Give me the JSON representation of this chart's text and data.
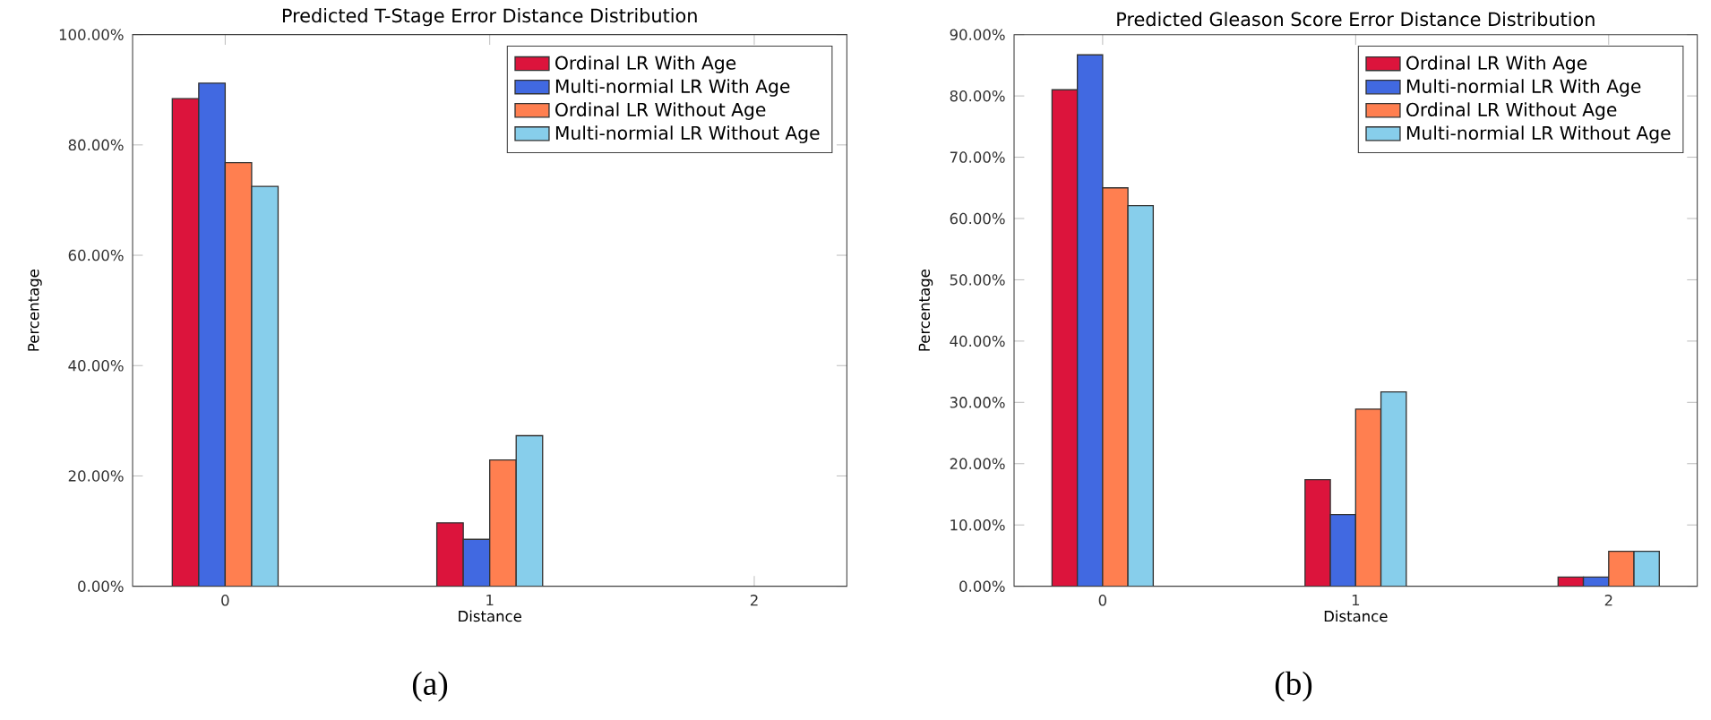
{
  "chart_data": [
    {
      "type": "bar",
      "title": "Predicted T-Stage Error Distance Distribution",
      "xlabel": "Distance",
      "ylabel": "Percentage",
      "categories": [
        "0",
        "1",
        "2"
      ],
      "series": [
        {
          "name": "Ordinal LR With Age",
          "color": "#dc143c",
          "values": [
            88.4,
            11.5,
            null
          ]
        },
        {
          "name": "Multi-normial LR With Age",
          "color": "#4169e1",
          "values": [
            91.2,
            8.5,
            null
          ]
        },
        {
          "name": "Ordinal LR Without Age",
          "color": "#ff7f50",
          "values": [
            76.8,
            22.9,
            null
          ]
        },
        {
          "name": "Multi-normial LR Without Age",
          "color": "#87ceeb",
          "values": [
            72.5,
            27.3,
            null
          ]
        }
      ],
      "ylim": [
        0,
        100
      ],
      "yticks": [
        {
          "value": 0,
          "label": "0.00%"
        },
        {
          "value": 20,
          "label": "20.00%"
        },
        {
          "value": 40,
          "label": "40.00%"
        },
        {
          "value": 60,
          "label": "60.00%"
        },
        {
          "value": 80,
          "label": "80.00%"
        },
        {
          "value": 100,
          "label": "100.00%"
        }
      ],
      "legend": "top right",
      "annotations": [
        "(a)"
      ]
    },
    {
      "type": "bar",
      "title": "Predicted Gleason Score Error Distance Distribution",
      "xlabel": "Distance",
      "ylabel": "Percentage",
      "categories": [
        "0",
        "1",
        "2"
      ],
      "series": [
        {
          "name": "Ordinal LR With Age",
          "color": "#dc143c",
          "values": [
            81.0,
            17.4,
            1.5
          ]
        },
        {
          "name": "Multi-normial LR With Age",
          "color": "#4169e1",
          "values": [
            86.7,
            11.7,
            1.5
          ]
        },
        {
          "name": "Ordinal LR Without Age",
          "color": "#ff7f50",
          "values": [
            65.0,
            28.9,
            5.7
          ]
        },
        {
          "name": "Multi-normial LR Without Age",
          "color": "#87ceeb",
          "values": [
            62.1,
            31.7,
            5.7
          ]
        }
      ],
      "ylim": [
        0,
        90
      ],
      "yticks": [
        {
          "value": 0,
          "label": "0.00%"
        },
        {
          "value": 10,
          "label": "10.00%"
        },
        {
          "value": 20,
          "label": "20.00%"
        },
        {
          "value": 30,
          "label": "30.00%"
        },
        {
          "value": 40,
          "label": "40.00%"
        },
        {
          "value": 50,
          "label": "50.00%"
        },
        {
          "value": 60,
          "label": "60.00%"
        },
        {
          "value": 70,
          "label": "70.00%"
        },
        {
          "value": 80,
          "label": "80.00%"
        },
        {
          "value": 90,
          "label": "90.00%"
        }
      ],
      "legend": "top right",
      "annotations": [
        "(b)"
      ]
    }
  ]
}
